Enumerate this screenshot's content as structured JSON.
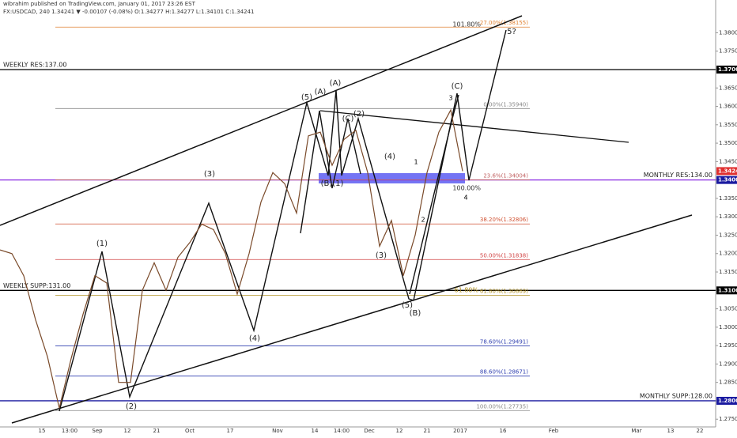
{
  "header": {
    "publisher": "wibrahim published on TradingView.com, January 01, 2017 23:26 EST",
    "symbol": "FX:USDCAD, 240  1.34241  ▼ -0.00107 (-0.08%)  O:1.34277 H:1.34277 L:1.34101 C:1.34241"
  },
  "chart_data": {
    "type": "line",
    "color": "#7a4a2a",
    "values": [
      1.321,
      1.32,
      1.314,
      1.302,
      1.292,
      1.278,
      1.2915,
      1.3035,
      1.314,
      1.312,
      1.285,
      1.285,
      1.31,
      1.3175,
      1.31,
      1.319,
      1.323,
      1.328,
      1.3265,
      1.32,
      1.309,
      1.32,
      1.334,
      1.342,
      1.339,
      1.331,
      1.352,
      1.353,
      1.344,
      1.351,
      1.3535,
      1.342,
      1.322,
      1.329,
      1.314,
      1.325,
      1.342,
      1.353,
      1.359,
      1.3424
    ],
    "xtick_labels": [
      "15",
      "13:00",
      "Sep",
      "12",
      "21",
      "Oct",
      "17",
      "Nov",
      "14",
      "14:00",
      "Dec",
      "12",
      "21",
      "2017",
      "16",
      "Feb",
      "Mar",
      "13",
      "22"
    ],
    "ylim": [
      1.2729,
      1.3889
    ],
    "yticks": [
      {
        "value": 1.275,
        "label": "1.27500"
      },
      {
        "value": 1.28,
        "label": "1.28000"
      },
      {
        "value": 1.285,
        "label": "1.28500"
      },
      {
        "value": 1.29,
        "label": "1.29000"
      },
      {
        "value": 1.295,
        "label": "1.29500"
      },
      {
        "value": 1.3,
        "label": "1.30000"
      },
      {
        "value": 1.305,
        "label": "1.30500"
      },
      {
        "value": 1.31,
        "label": "1.31000"
      },
      {
        "value": 1.315,
        "label": "1.31500"
      },
      {
        "value": 1.32,
        "label": "1.32000"
      },
      {
        "value": 1.325,
        "label": "1.32500"
      },
      {
        "value": 1.33,
        "label": "1.33000"
      },
      {
        "value": 1.335,
        "label": "1.33500"
      },
      {
        "value": 1.34,
        "label": "1.34000"
      },
      {
        "value": 1.345,
        "label": "1.34500"
      },
      {
        "value": 1.35,
        "label": "1.35000"
      },
      {
        "value": 1.355,
        "label": "1.35500"
      },
      {
        "value": 1.36,
        "label": "1.36000"
      },
      {
        "value": 1.365,
        "label": "1.36500"
      },
      {
        "value": 1.37,
        "label": "1.37000"
      },
      {
        "value": 1.375,
        "label": "1.37500"
      },
      {
        "value": 1.38,
        "label": "1.38000"
      }
    ],
    "levels": [
      {
        "value": 1.37,
        "label": "WEEKLY RES:137.00",
        "color": "#000000",
        "side": "left"
      },
      {
        "value": 1.34,
        "label": "MONTHLY RES:134.00",
        "color": "#8a2be2",
        "side": "right"
      },
      {
        "value": 1.31,
        "label": "WEEKLY SUPP:131.00",
        "color": "#000000",
        "side": "left"
      },
      {
        "value": 1.28,
        "label": "MONTHLY SUPP:128.00",
        "color": "#1a1aa0",
        "side": "right"
      }
    ],
    "fib_levels": [
      {
        "value": 1.3594,
        "label": "0.00%(1.35940)",
        "color": "#888888"
      },
      {
        "value": 1.34004,
        "label": "23.6%(1.34004)",
        "color": "#c06060"
      },
      {
        "value": 1.32806,
        "label": "38.20%(1.32806)",
        "color": "#d05030"
      },
      {
        "value": 1.31838,
        "label": "50.00%(1.31838)",
        "color": "#d04040"
      },
      {
        "value": 1.30869,
        "label": "61.80%(1.30869)",
        "color": "#b09020"
      },
      {
        "value": 1.29491,
        "label": "78.60%(1.29491)",
        "color": "#3040b0"
      },
      {
        "value": 1.28671,
        "label": "88.60%(1.28671)",
        "color": "#3040b0"
      },
      {
        "value": 1.27735,
        "label": "100.00%(1.27735)",
        "color": "#888888"
      },
      {
        "value": 1.38155,
        "label": "-27.00%(1.38155)",
        "color": "#e08030"
      }
    ],
    "price_labels": [
      {
        "value": 1.37,
        "label": "1.37000",
        "color": "#000000"
      },
      {
        "value": 1.34241,
        "label": "1.34241",
        "color": "#e03030"
      },
      {
        "value": 1.34,
        "label": "1.34000",
        "color": "#1a1aa0"
      },
      {
        "value": 1.31,
        "label": "1.31000",
        "color": "#000000"
      },
      {
        "value": 1.28,
        "label": "1.28000",
        "color": "#1a1aa0"
      }
    ],
    "annotations": [
      "(1)",
      "(2)",
      "(3)",
      "(4)",
      "(5)",
      "(A)",
      "(A)",
      "(B)(1)",
      "(C)",
      "(2)",
      "(4)",
      "(3)",
      "(5)",
      "(B)",
      "1",
      "2",
      "3",
      "(C)",
      "4",
      "5?",
      "101.80%",
      "100.00%",
      "61.80%"
    ]
  }
}
